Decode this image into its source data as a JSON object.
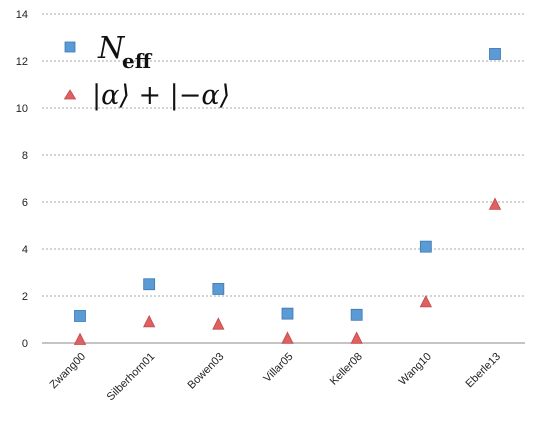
{
  "chart_data": {
    "type": "scatter",
    "categories": [
      "Zwang00",
      "Silberhorn01",
      "Bowen03",
      "Villar05",
      "Keller08",
      "Wang10",
      "Eberle13"
    ],
    "series": [
      {
        "name": "N_eff",
        "marker": "square",
        "color": "#5b9bd5",
        "values": [
          1.15,
          2.5,
          2.3,
          1.25,
          1.2,
          4.1,
          12.3
        ]
      },
      {
        "name": "|α⟩ + |−α⟩",
        "marker": "triangle",
        "color": "#e06060",
        "values": [
          0.15,
          0.9,
          0.8,
          0.2,
          0.2,
          1.75,
          5.9
        ]
      }
    ],
    "ylim": [
      0,
      14
    ],
    "yticks": [
      0,
      2,
      4,
      6,
      8,
      10,
      12,
      14
    ],
    "grid": true,
    "grid_style": "dashed horizontal",
    "legend_position": "top-left",
    "xlabel": "",
    "ylabel": "",
    "title": ""
  },
  "legend": {
    "neff_main": "N",
    "neff_sub": "eff",
    "cat_state": "|α⟩ + |−α⟩"
  }
}
